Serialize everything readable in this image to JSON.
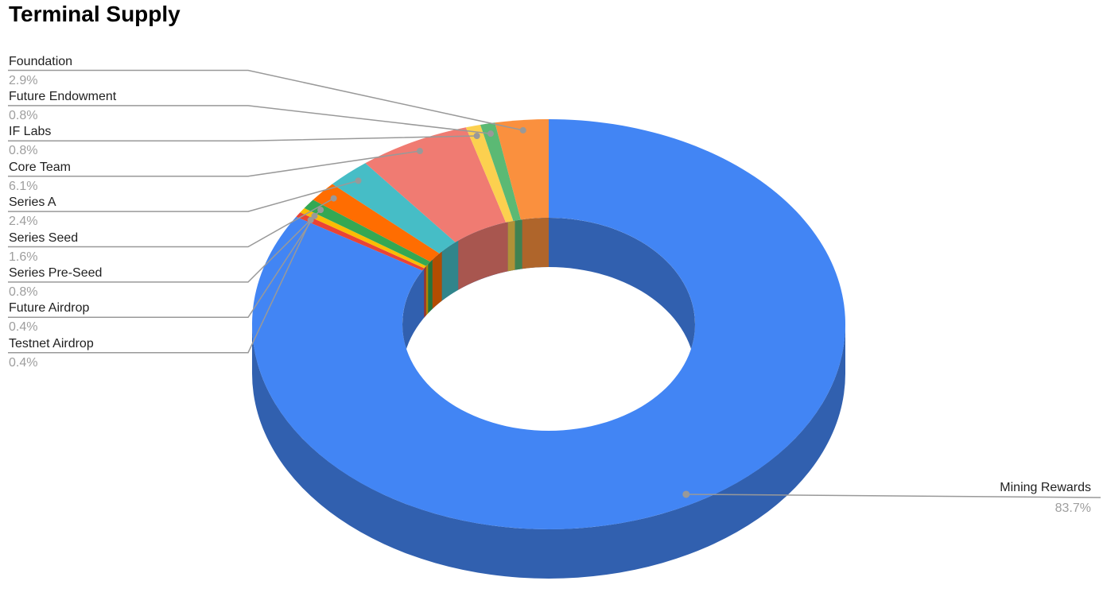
{
  "chart_data": {
    "type": "pie",
    "variant": "3d-donut",
    "title": "Terminal Supply",
    "start_angle_deg": 0,
    "direction": "clockwise",
    "legend_position": "callout-labels-left-and-right",
    "grid": false,
    "slices": [
      {
        "label": "Mining Rewards",
        "value": 83.7,
        "pct_label": "83.7%",
        "color": "#4285F4",
        "wall_color": "#3160AF"
      },
      {
        "label": "Testnet Airdrop",
        "value": 0.4,
        "pct_label": "0.4%",
        "color": "#EA4335",
        "wall_color": "#A43025"
      },
      {
        "label": "Future Airdrop",
        "value": 0.4,
        "pct_label": "0.4%",
        "color": "#FBBC04",
        "wall_color": "#B08403"
      },
      {
        "label": "Series Pre-Seed",
        "value": 0.8,
        "pct_label": "0.8%",
        "color": "#34A853",
        "wall_color": "#25763A"
      },
      {
        "label": "Series Seed",
        "value": 1.6,
        "pct_label": "1.6%",
        "color": "#FF6D01",
        "wall_color": "#B34D01"
      },
      {
        "label": "Series A",
        "value": 2.4,
        "pct_label": "2.4%",
        "color": "#46BDC6",
        "wall_color": "#31858B"
      },
      {
        "label": "Core Team",
        "value": 6.1,
        "pct_label": "6.1%",
        "color": "#F07B72",
        "wall_color": "#A8564F"
      },
      {
        "label": "IF Labs",
        "value": 0.8,
        "pct_label": "0.8%",
        "color": "#FCD04F",
        "wall_color": "#B09137"
      },
      {
        "label": "Future Endowment",
        "value": 0.8,
        "pct_label": "0.8%",
        "color": "#5BB974",
        "wall_color": "#408251"
      },
      {
        "label": "Foundation",
        "value": 2.9,
        "pct_label": "2.9%",
        "color": "#FA903E",
        "wall_color": "#AF652B"
      }
    ],
    "colors": {
      "background": "#FFFFFF",
      "leader_line": "#999999",
      "callout_dot": "#999999",
      "label_text": "#212121",
      "pct_text": "#9E9E9E",
      "title_text": "#000000"
    }
  }
}
